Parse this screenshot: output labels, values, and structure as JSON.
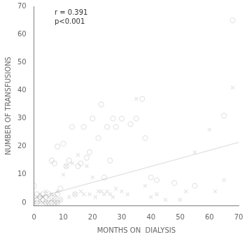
{
  "chart_data": {
    "type": "scatter",
    "xlabel": "MONTHS ON  DIALYSIS",
    "ylabel": "NUMBER OF TRANSFUSIONS",
    "xlim": [
      0,
      70
    ],
    "ylim": [
      -1,
      70
    ],
    "xticks": [
      0,
      10,
      20,
      30,
      40,
      50,
      60,
      70
    ],
    "yticks": [
      0,
      10,
      20,
      30,
      40,
      50,
      60,
      70
    ],
    "annotation": "r = 0.391\np<0.001",
    "grid": false,
    "series": [
      {
        "marker": "x",
        "x": [
          0,
          0,
          1,
          1,
          2,
          2,
          2,
          3,
          3,
          4,
          4,
          5,
          5,
          6,
          6,
          7,
          7,
          8,
          8,
          9,
          10,
          11,
          12,
          13,
          14,
          15,
          16,
          17,
          18,
          19,
          20,
          21,
          22,
          23,
          24,
          25,
          26,
          27,
          28,
          30,
          32,
          35,
          38,
          40,
          42,
          45,
          50,
          52,
          55,
          60,
          62,
          65,
          68
        ],
        "values": [
          0,
          1,
          0,
          2,
          0,
          1,
          3,
          0,
          2,
          0,
          4,
          0,
          2,
          1,
          3,
          0,
          2,
          0,
          4,
          1,
          10,
          13,
          2,
          14,
          3,
          17,
          4,
          3,
          13,
          3,
          9,
          2,
          4,
          4,
          3,
          4,
          3,
          2,
          5,
          4,
          3,
          37,
          6,
          2,
          3,
          1,
          1,
          4,
          18,
          26,
          4,
          8,
          41
        ]
      },
      {
        "marker": "circle",
        "x": [
          0,
          1,
          1,
          2,
          3,
          3,
          4,
          4,
          5,
          5,
          6,
          6,
          7,
          7,
          7,
          8,
          8,
          8,
          9,
          9,
          10,
          11,
          12,
          13,
          14,
          15,
          16,
          17,
          18,
          19,
          20,
          22,
          23,
          24,
          25,
          26,
          27,
          28,
          30,
          33,
          35,
          37,
          38,
          40,
          42,
          48,
          55,
          65,
          68
        ],
        "values": [
          6,
          0,
          3,
          2,
          1,
          3,
          0,
          2,
          0,
          3,
          0,
          15,
          0,
          2,
          14,
          0,
          3,
          20,
          1,
          5,
          21,
          13,
          15,
          27,
          3,
          13,
          14,
          27,
          16,
          18,
          30,
          23,
          35,
          9,
          27,
          15,
          30,
          27,
          30,
          28,
          30,
          37,
          23,
          9,
          8,
          7,
          6,
          31,
          65
        ]
      },
      {
        "type": "line",
        "x": [
          0,
          70
        ],
        "values": [
          1.5,
          21.5
        ]
      }
    ]
  }
}
